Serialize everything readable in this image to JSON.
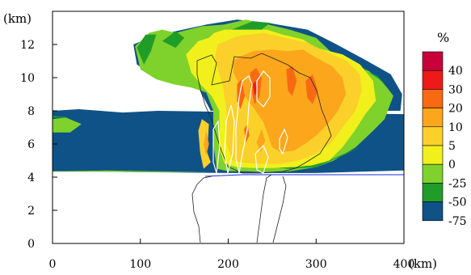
{
  "chart_data": {
    "type": "contour",
    "ylabel": "(km)",
    "xlabel": "(km)",
    "xlim": [
      0,
      400
    ],
    "ylim": [
      0,
      14
    ],
    "xticks": [
      0,
      100,
      200,
      300,
      400
    ],
    "yticks": [
      0,
      2,
      4,
      6,
      8,
      10,
      12
    ],
    "colorbar": {
      "title": "%",
      "labels": [
        "40",
        "30",
        "20",
        "10",
        "5",
        "0",
        "-25",
        "-50",
        "-75"
      ],
      "colors": [
        "#c8003c",
        "#ee1a1a",
        "#f76a12",
        "#fca61c",
        "#fbd02a",
        "#f1f01c",
        "#7fd12b",
        "#1f9d28",
        "#0f5287"
      ]
    },
    "fields": [
      {
        "level_color": "#0f5287",
        "polygons": [
          [
            [
              0,
              8.0
            ],
            [
              30,
              8.1
            ],
            [
              80,
              7.9
            ],
            [
              120,
              8.0
            ],
            [
              180,
              7.95
            ],
            [
              400,
              7.8
            ],
            [
              400,
              4.4
            ],
            [
              300,
              4.25
            ],
            [
              240,
              4.25
            ],
            [
              200,
              4.25
            ],
            [
              100,
              4.3
            ],
            [
              0,
              4.35
            ]
          ],
          [
            [
              92,
              12.0
            ],
            [
              110,
              12.4
            ],
            [
              140,
              12.8
            ],
            [
              175,
              13.2
            ],
            [
              210,
              13.5
            ],
            [
              245,
              13.3
            ],
            [
              290,
              12.9
            ],
            [
              320,
              12.1
            ],
            [
              355,
              11.1
            ],
            [
              385,
              10.2
            ],
            [
              398,
              9.0
            ],
            [
              396,
              8.0
            ],
            [
              180,
              8.0
            ],
            [
              165,
              9.5
            ],
            [
              150,
              9.7
            ],
            [
              118,
              10.0
            ],
            [
              96,
              10.8
            ]
          ]
        ]
      },
      {
        "level_color": "#7fd12b",
        "polygons": [
          [
            [
              94,
              11.9
            ],
            [
              110,
              12.7
            ],
            [
              125,
              12.9
            ],
            [
              140,
              12.7
            ],
            [
              170,
              13.1
            ],
            [
              195,
              13.2
            ],
            [
              220,
              13.5
            ],
            [
              246,
              13.2
            ],
            [
              270,
              12.9
            ],
            [
              300,
              12.4
            ],
            [
              318,
              11.5
            ],
            [
              335,
              11.0
            ],
            [
              360,
              10.4
            ],
            [
              375,
              9.8
            ],
            [
              388,
              8.9
            ],
            [
              378,
              7.5
            ],
            [
              365,
              6.8
            ],
            [
              345,
              5.8
            ],
            [
              320,
              5.0
            ],
            [
              300,
              4.6
            ],
            [
              270,
              4.35
            ],
            [
              240,
              4.3
            ],
            [
              220,
              4.35
            ],
            [
              200,
              4.35
            ],
            [
              187,
              4.5
            ],
            [
              183,
              6.0
            ],
            [
              183,
              8.0
            ],
            [
              175,
              9.1
            ],
            [
              158,
              9.4
            ],
            [
              138,
              9.6
            ],
            [
              118,
              9.9
            ],
            [
              100,
              10.5
            ]
          ],
          [
            [
              0,
              7.5
            ],
            [
              15,
              7.6
            ],
            [
              33,
              7.2
            ],
            [
              20,
              6.7
            ],
            [
              0,
              6.7
            ]
          ],
          [
            [
              0,
              4.35
            ],
            [
              60,
              4.4
            ],
            [
              120,
              4.35
            ],
            [
              180,
              4.3
            ],
            [
              120,
              4.3
            ],
            [
              60,
              4.32
            ],
            [
              0,
              4.32
            ]
          ]
        ]
      },
      {
        "level_color": "#1f9d28",
        "polygons": [
          [
            [
              96,
              11.8
            ],
            [
              106,
              12.6
            ],
            [
              118,
              12.6
            ],
            [
              112,
              11.6
            ],
            [
              104,
              10.8
            ]
          ],
          [
            [
              125,
              12.2
            ],
            [
              140,
              12.8
            ],
            [
              150,
              12.4
            ],
            [
              140,
              11.8
            ]
          ],
          [
            [
              204,
              12.9
            ],
            [
              228,
              13.4
            ],
            [
              248,
              13.3
            ],
            [
              238,
              12.9
            ],
            [
              222,
              12.8
            ]
          ],
          [
            [
              230,
              4.7
            ],
            [
              270,
              4.5
            ],
            [
              300,
              4.6
            ],
            [
              330,
              5.3
            ],
            [
              350,
              5.8
            ],
            [
              340,
              5.6
            ],
            [
              310,
              4.9
            ],
            [
              280,
              4.6
            ],
            [
              250,
              4.6
            ]
          ],
          [
            [
              0,
              7.7
            ],
            [
              20,
              7.6
            ],
            [
              33,
              7.3
            ],
            [
              20,
              7.6
            ],
            [
              0,
              7.6
            ]
          ],
          [
            [
              345,
              10.7
            ],
            [
              370,
              10.1
            ],
            [
              382,
              9.3
            ],
            [
              372,
              9.9
            ],
            [
              355,
              10.5
            ]
          ]
        ]
      },
      {
        "level_color": "#f1f01c",
        "polygons": [
          [
            [
              152,
              11.4
            ],
            [
              166,
              12.2
            ],
            [
              178,
              12.4
            ],
            [
              184,
              12.7
            ],
            [
              196,
              12.9
            ],
            [
              220,
              12.9
            ],
            [
              244,
              12.9
            ],
            [
              262,
              12.6
            ],
            [
              285,
              12.3
            ],
            [
              300,
              11.8
            ],
            [
              330,
              11.4
            ],
            [
              350,
              10.8
            ],
            [
              365,
              9.8
            ],
            [
              368,
              8.6
            ],
            [
              356,
              7.8
            ],
            [
              344,
              6.8
            ],
            [
              330,
              5.8
            ],
            [
              315,
              5.0
            ],
            [
              295,
              4.7
            ],
            [
              270,
              4.6
            ],
            [
              250,
              4.55
            ],
            [
              230,
              4.55
            ],
            [
              210,
              4.6
            ],
            [
              196,
              4.8
            ],
            [
              190,
              5.7
            ],
            [
              190,
              8.0
            ],
            [
              181,
              8.9
            ],
            [
              170,
              9.5
            ],
            [
              158,
              10.3
            ]
          ]
        ]
      },
      {
        "level_color": "#fbd02a",
        "polygons": [
          [
            [
              188,
              12.0
            ],
            [
              210,
              12.5
            ],
            [
              240,
              12.7
            ],
            [
              265,
              12.4
            ],
            [
              290,
              12.1
            ],
            [
              310,
              11.6
            ],
            [
              335,
              11.0
            ],
            [
              350,
              10.2
            ],
            [
              352,
              9.2
            ],
            [
              345,
              8.0
            ],
            [
              330,
              7.0
            ],
            [
              318,
              6.1
            ],
            [
              300,
              5.4
            ],
            [
              280,
              5.0
            ],
            [
              260,
              4.8
            ],
            [
              240,
              4.8
            ],
            [
              220,
              4.85
            ],
            [
              205,
              5.0
            ],
            [
              198,
              6.0
            ],
            [
              198,
              8.0
            ],
            [
              194,
              9.5
            ],
            [
              188,
              10.5
            ],
            [
              185,
              11.3
            ]
          ],
          [
            [
              170,
              7.5
            ],
            [
              178,
              7.2
            ],
            [
              176,
              5.5
            ],
            [
              180,
              4.9
            ],
            [
              172,
              4.5
            ],
            [
              168,
              5.5
            ],
            [
              166,
              6.8
            ]
          ]
        ]
      },
      {
        "level_color": "#fca61c",
        "polygons": [
          [
            [
              205,
              11.0
            ],
            [
              215,
              11.3
            ],
            [
              228,
              11.6
            ],
            [
              250,
              11.7
            ],
            [
              268,
              11.6
            ],
            [
              285,
              11.7
            ],
            [
              300,
              11.2
            ],
            [
              318,
              10.7
            ],
            [
              330,
              10.0
            ],
            [
              334,
              9.0
            ],
            [
              325,
              8.0
            ],
            [
              315,
              7.3
            ],
            [
              300,
              6.5
            ],
            [
              290,
              6.1
            ],
            [
              275,
              5.6
            ],
            [
              260,
              5.5
            ],
            [
              250,
              5.8
            ],
            [
              245,
              6.6
            ],
            [
              240,
              7.3
            ],
            [
              230,
              8.1
            ],
            [
              220,
              8.8
            ],
            [
              212,
              9.6
            ],
            [
              206,
              10.3
            ]
          ],
          [
            [
              232,
              6.1
            ],
            [
              238,
              6.9
            ],
            [
              242,
              6.2
            ],
            [
              237,
              5.5
            ]
          ],
          [
            [
              175,
              6.8
            ],
            [
              178,
              6.0
            ],
            [
              175,
              5.3
            ],
            [
              172,
              6.0
            ]
          ]
        ]
      },
      {
        "level_color": "#f76a12",
        "polygons": [
          [
            [
              225,
              10.3
            ],
            [
              232,
              10.6
            ],
            [
              238,
              10.0
            ],
            [
              236,
              8.9
            ],
            [
              230,
              8.4
            ],
            [
              226,
              9.3
            ]
          ],
          [
            [
              210,
              9.6
            ],
            [
              215,
              9.9
            ],
            [
              219,
              8.9
            ],
            [
              214,
              8.1
            ],
            [
              210,
              8.6
            ]
          ],
          [
            [
              266,
              10.5
            ],
            [
              273,
              10.7
            ],
            [
              278,
              9.8
            ],
            [
              273,
              8.9
            ],
            [
              268,
              9.2
            ]
          ],
          [
            [
              288,
              9.8
            ],
            [
              296,
              10.2
            ],
            [
              302,
              9.2
            ],
            [
              296,
              8.4
            ],
            [
              290,
              8.8
            ]
          ],
          [
            [
              218,
              6.9
            ],
            [
              222,
              7.2
            ],
            [
              224,
              6.5
            ],
            [
              220,
              6.1
            ]
          ]
        ]
      },
      {
        "level_color": "#ee1a1a",
        "polygons": [
          [
            [
              228,
              9.6
            ],
            [
              231,
              9.8
            ],
            [
              233,
              9.2
            ],
            [
              230,
              8.9
            ]
          ]
        ]
      }
    ]
  }
}
